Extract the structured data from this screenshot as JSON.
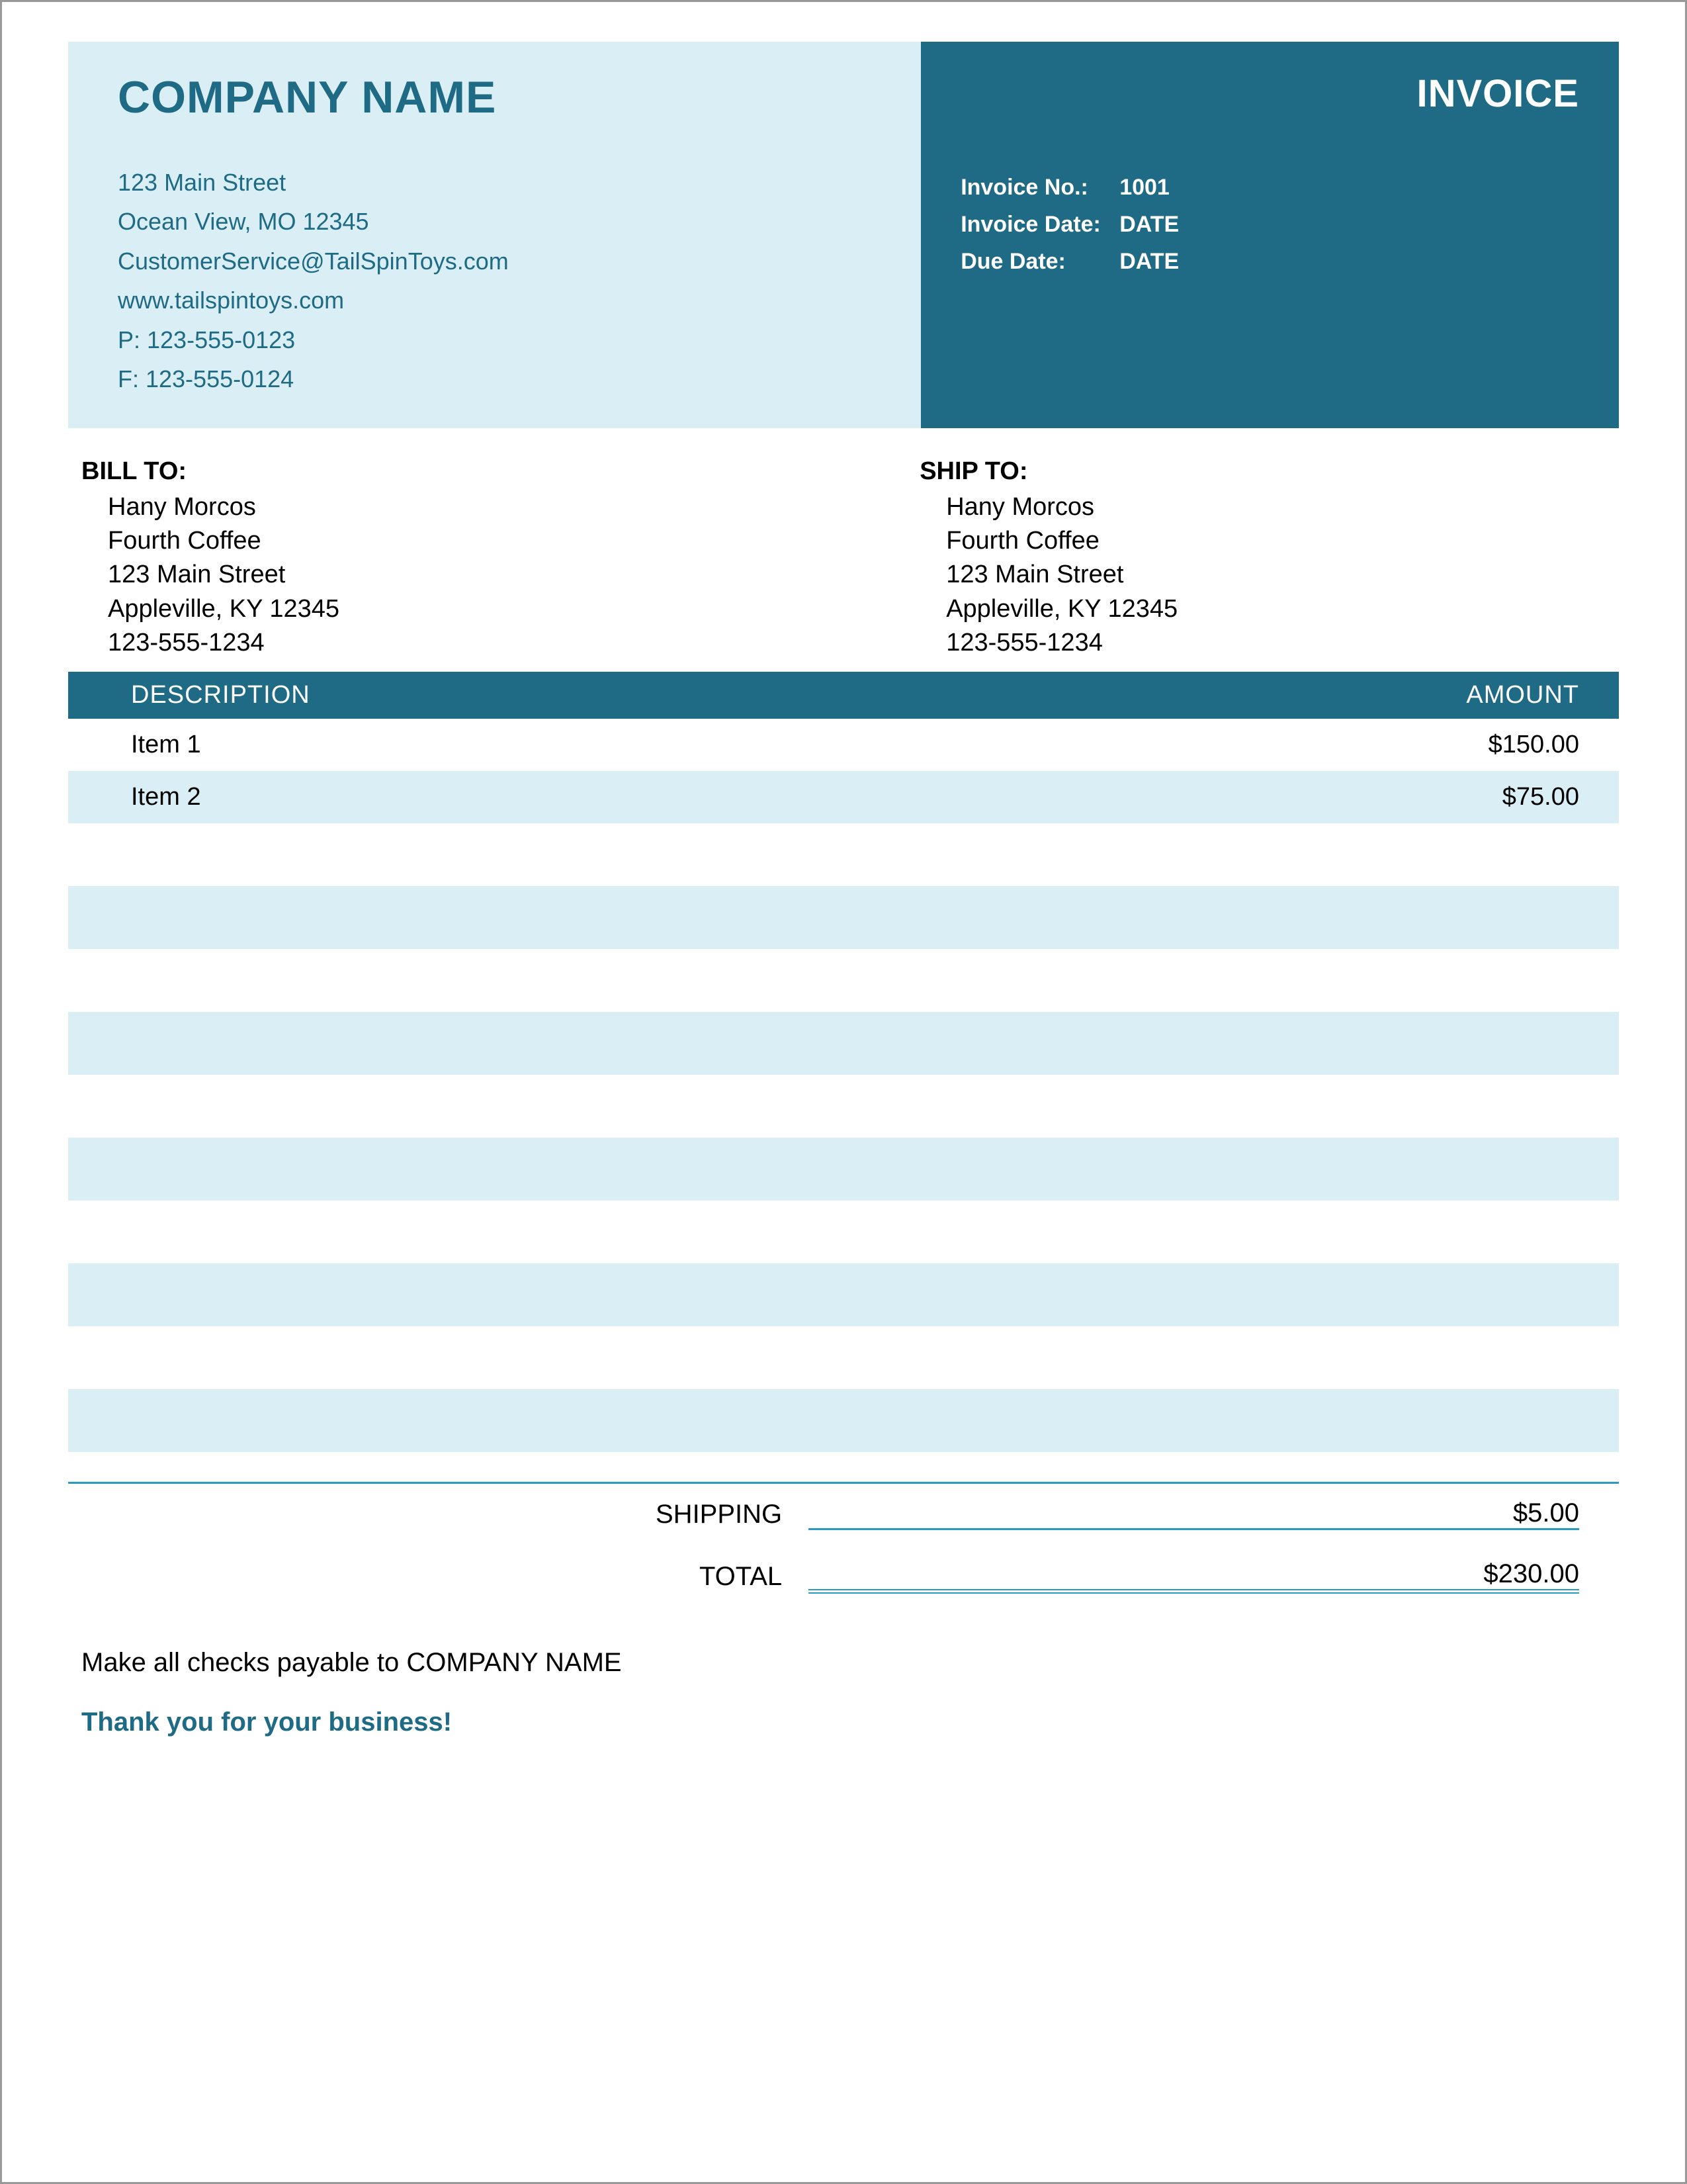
{
  "colors": {
    "accent_dark": "#1f6a84",
    "accent_light": "#d9eff5",
    "accent_line": "#2a9bbf",
    "white": "#ffffff",
    "text": "#000000"
  },
  "company": {
    "name": "COMPANY NAME",
    "street": "123 Main Street",
    "city_line": "Ocean View, MO 12345",
    "email": "CustomerService@TailSpinToys.com",
    "website": "www.tailspintoys.com",
    "phone": "P: 123-555-0123",
    "fax": "F: 123-555-0124"
  },
  "doc": {
    "title": "INVOICE",
    "meta": [
      {
        "label": "Invoice No.:",
        "value": "1001"
      },
      {
        "label": "Invoice Date:",
        "value": "DATE"
      },
      {
        "label": "Due Date:",
        "value": "DATE"
      }
    ]
  },
  "bill_to": {
    "title": "BILL TO:",
    "lines": [
      "Hany Morcos",
      "Fourth Coffee",
      "123 Main Street",
      "Appleville, KY 12345",
      "123-555-1234"
    ]
  },
  "ship_to": {
    "title": "SHIP TO:",
    "lines": [
      "Hany Morcos",
      "Fourth Coffee",
      "123 Main Street",
      "Appleville, KY 12345",
      "123-555-1234"
    ]
  },
  "table": {
    "headers": {
      "description": "DESCRIPTION",
      "amount": "AMOUNT"
    },
    "rows": [
      {
        "description": "Item 1",
        "amount": "$150.00"
      },
      {
        "description": "Item 2",
        "amount": "$75.00"
      }
    ],
    "blank_pairs": 5
  },
  "totals": {
    "shipping": {
      "label": "SHIPPING",
      "value": "$5.00"
    },
    "grand": {
      "label": "TOTAL",
      "value": "$230.00"
    }
  },
  "footer": {
    "payable": "Make all checks payable to COMPANY NAME",
    "thanks": "Thank you for your business!"
  }
}
